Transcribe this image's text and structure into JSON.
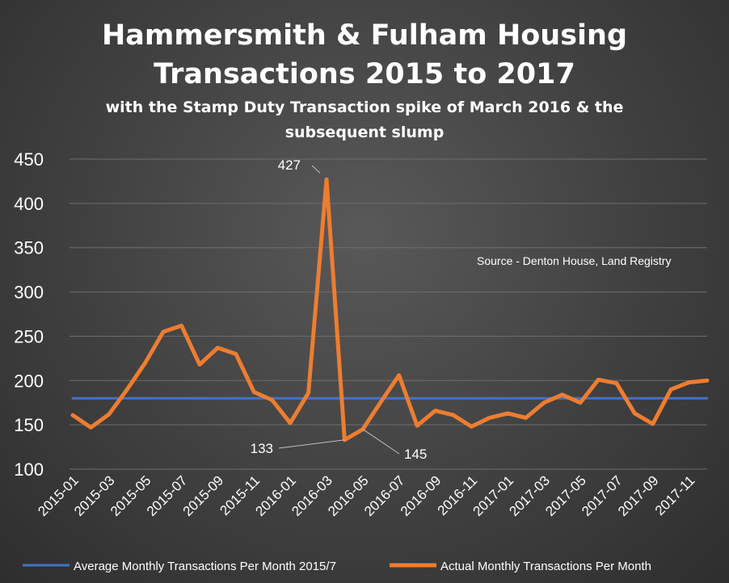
{
  "chart_data": {
    "type": "line",
    "title_lines": [
      "Hammersmith & Fulham Housing",
      "Transactions 2015 to 2017"
    ],
    "subtitle_lines": [
      "with the Stamp Duty Transaction spike of March 2016 & the",
      "subsequent slump"
    ],
    "source_note": "Source - Denton House, Land Registry",
    "ylim": [
      100,
      450
    ],
    "yticks": [
      100,
      150,
      200,
      250,
      300,
      350,
      400,
      450
    ],
    "x": [
      "2015-01",
      "2015-02",
      "2015-03",
      "2015-04",
      "2015-05",
      "2015-06",
      "2015-07",
      "2015-08",
      "2015-09",
      "2015-10",
      "2015-11",
      "2015-12",
      "2016-01",
      "2016-02",
      "2016-03",
      "2016-04",
      "2016-05",
      "2016-06",
      "2016-07",
      "2016-08",
      "2016-09",
      "2016-10",
      "2016-11",
      "2016-12",
      "2017-01",
      "2017-02",
      "2017-03",
      "2017-04",
      "2017-05",
      "2017-06",
      "2017-07",
      "2017-08",
      "2017-09",
      "2017-10",
      "2017-11",
      "2017-12"
    ],
    "xtick_labels": [
      "2015-01",
      "2015-03",
      "2015-05",
      "2015-07",
      "2015-09",
      "2015-11",
      "2016-01",
      "2016-03",
      "2016-05",
      "2016-07",
      "2016-09",
      "2016-11",
      "2017-01",
      "2017-03",
      "2017-05",
      "2017-07",
      "2017-09",
      "2017-11"
    ],
    "grid": true,
    "legend_position": "bottom",
    "series": [
      {
        "name": "Average Monthly Transactions Per Month 2015/7",
        "color": "#4472c4",
        "values": [
          180,
          180,
          180,
          180,
          180,
          180,
          180,
          180,
          180,
          180,
          180,
          180,
          180,
          180,
          180,
          180,
          180,
          180,
          180,
          180,
          180,
          180,
          180,
          180,
          180,
          180,
          180,
          180,
          180,
          180,
          180,
          180,
          180,
          180,
          180,
          180
        ]
      },
      {
        "name": "Actual Monthly Transactions Per Month",
        "color": "#ed7d31",
        "values": [
          161,
          147,
          162,
          190,
          220,
          255,
          262,
          218,
          237,
          230,
          187,
          178,
          152,
          186,
          427,
          133,
          145,
          176,
          206,
          149,
          166,
          161,
          148,
          158,
          163,
          158,
          175,
          184,
          175,
          201,
          197,
          163,
          151,
          190,
          198,
          200
        ]
      }
    ],
    "annotations": [
      {
        "label": "427",
        "index": 14
      },
      {
        "label": "133",
        "index": 15
      },
      {
        "label": "145",
        "index": 16
      }
    ]
  }
}
